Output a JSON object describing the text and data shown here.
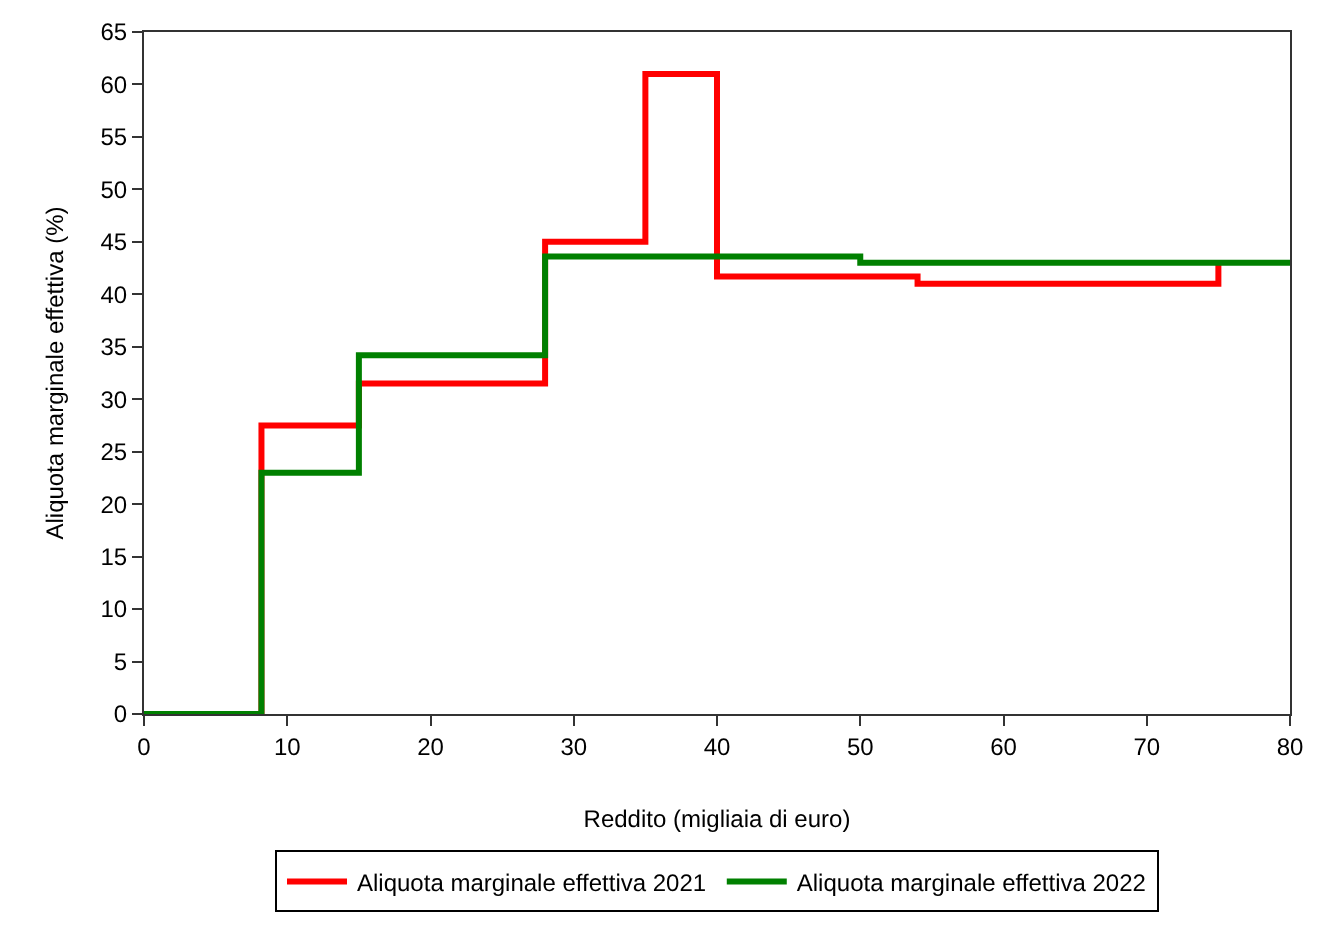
{
  "chart_data": {
    "type": "step",
    "xlabel": "Reddito (migliaia di euro)",
    "ylabel": "Aliquota marginale effettiva (%)",
    "xlim": [
      0,
      80
    ],
    "xticks": [
      0,
      10,
      20,
      30,
      40,
      50,
      60,
      70,
      80
    ],
    "ylim": [
      0,
      65
    ],
    "yticks": [
      0,
      5,
      10,
      15,
      20,
      25,
      30,
      35,
      40,
      45,
      50,
      55,
      60,
      65
    ],
    "legend": "bottom",
    "marker": "none",
    "line_style": "solid",
    "series": [
      {
        "name": "Aliquota marginale effettiva 2021",
        "color": "#ff0000",
        "x": [
          0,
          8.2,
          15,
          28,
          35,
          40,
          54,
          75
        ],
        "values": [
          0,
          27.5,
          31.5,
          45,
          61,
          41.7,
          41,
          43
        ]
      },
      {
        "name": "Aliquota marginale effettiva 2022",
        "color": "#008000",
        "x": [
          0,
          8.2,
          15,
          28,
          50,
          80
        ],
        "values": [
          0,
          23,
          34.2,
          43.6,
          43,
          43
        ]
      }
    ]
  }
}
